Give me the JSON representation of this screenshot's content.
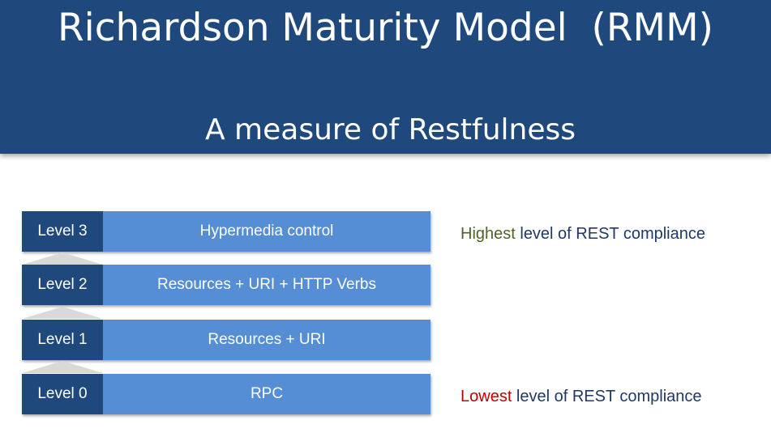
{
  "header": {
    "title": "Richardson Maturity Model  (RMM)",
    "subtitle": "A measure of Restfulness"
  },
  "levels": [
    {
      "tag": "Level 3",
      "description": "Hypermedia control"
    },
    {
      "tag": "Level 2",
      "description": "Resources + URI + HTTP Verbs"
    },
    {
      "tag": "Level 1",
      "description": "Resources + URI"
    },
    {
      "tag": "Level 0",
      "description": "RPC"
    }
  ],
  "notes": {
    "highest": {
      "keyword": "Highest",
      "rest": " level of REST compliance"
    },
    "lowest": {
      "keyword": "Lowest",
      "rest": " level of REST compliance"
    }
  },
  "colors": {
    "header_bg": "#1f497d",
    "level_tag_bg": "#1f497d",
    "level_desc_bg": "#558ed5",
    "highest_keyword": "#4f6228",
    "lowest_keyword": "#c00000",
    "note_text": "#1f3864"
  }
}
